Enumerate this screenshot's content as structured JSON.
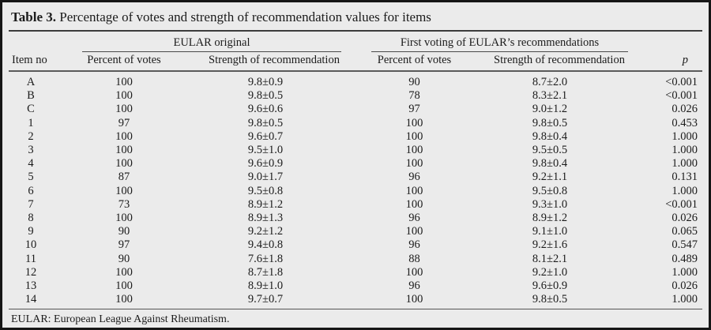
{
  "title": {
    "label": "Table 3.",
    "caption": "Percentage of votes and strength of recommendation values for items"
  },
  "table": {
    "group_headers": {
      "eular_original": "EULAR original",
      "first_voting": "First voting of EULAR’s recommendations"
    },
    "columns": {
      "item_no": "Item no",
      "percent_votes_1": "Percent of votes",
      "strength_1": "Strength of recommendation",
      "percent_votes_2": "Percent of votes",
      "strength_2": "Strength of recommendation",
      "p": "p"
    },
    "rows": [
      [
        "A",
        "100",
        "9.8±0.9",
        "90",
        "8.7±2.0",
        "<0.001"
      ],
      [
        "B",
        "100",
        "9.8±0.5",
        "78",
        "8.3±2.1",
        "<0.001"
      ],
      [
        "C",
        "100",
        "9.6±0.6",
        "97",
        "9.0±1.2",
        "0.026"
      ],
      [
        "1",
        "97",
        "9.8±0.5",
        "100",
        "9.8±0.5",
        "0.453"
      ],
      [
        "2",
        "100",
        "9.6±0.7",
        "100",
        "9.8±0.4",
        "1.000"
      ],
      [
        "3",
        "100",
        "9.5±1.0",
        "100",
        "9.5±0.5",
        "1.000"
      ],
      [
        "4",
        "100",
        "9.6±0.9",
        "100",
        "9.8±0.4",
        "1.000"
      ],
      [
        "5",
        "87",
        "9.0±1.7",
        "96",
        "9.2±1.1",
        "0.131"
      ],
      [
        "6",
        "100",
        "9.5±0.8",
        "100",
        "9.5±0.8",
        "1.000"
      ],
      [
        "7",
        "73",
        "8.9±1.2",
        "100",
        "9.3±1.0",
        "<0.001"
      ],
      [
        "8",
        "100",
        "8.9±1.3",
        "96",
        "8.9±1.2",
        "0.026"
      ],
      [
        "9",
        "90",
        "9.2±1.2",
        "100",
        "9.1±1.0",
        "0.065"
      ],
      [
        "10",
        "97",
        "9.4±0.8",
        "96",
        "9.2±1.6",
        "0.547"
      ],
      [
        "11",
        "90",
        "7.6±1.8",
        "88",
        "8.1±2.1",
        "0.489"
      ],
      [
        "12",
        "100",
        "8.7±1.8",
        "100",
        "9.2±1.0",
        "1.000"
      ],
      [
        "13",
        "100",
        "8.9±1.0",
        "96",
        "9.6±0.9",
        "0.026"
      ],
      [
        "14",
        "100",
        "9.7±0.7",
        "100",
        "9.8±0.5",
        "1.000"
      ]
    ],
    "footnote": "EULAR: European League Against Rheumatism."
  },
  "colors": {
    "background": "#ebebeb",
    "border": "#161616",
    "text": "#1b1b1b",
    "rule": "#4a4a4a"
  }
}
